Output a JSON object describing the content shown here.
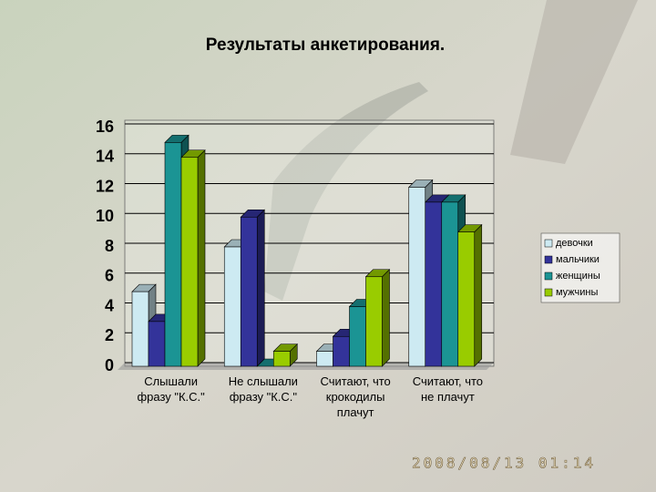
{
  "chart_data": {
    "type": "bar3d",
    "title": "Результаты анкетирования.",
    "categories": [
      "Слышали\nфразу \"К.С.\"",
      "Не слышали\nфразу \"К.С.\"",
      "Считают, что\nкрокодилы\nплачут",
      "Считают, что\nне плачут"
    ],
    "series": [
      {
        "name": "девочки",
        "color": "#cdeaf2",
        "values": [
          5,
          8,
          1,
          12
        ]
      },
      {
        "name": "мальчики",
        "color": "#33339a",
        "values": [
          3,
          10,
          2,
          11
        ]
      },
      {
        "name": "женщины",
        "color": "#1b9494",
        "values": [
          15,
          0,
          4,
          11
        ]
      },
      {
        "name": "мужчины",
        "color": "#99cc00",
        "values": [
          14,
          1,
          6,
          9
        ]
      }
    ],
    "ylim": [
      0,
      16
    ],
    "yticks": [
      0,
      2,
      4,
      6,
      8,
      10,
      12,
      14,
      16
    ],
    "grid": true,
    "legend": "right",
    "timestamp": "2008/08/13 01:14"
  }
}
